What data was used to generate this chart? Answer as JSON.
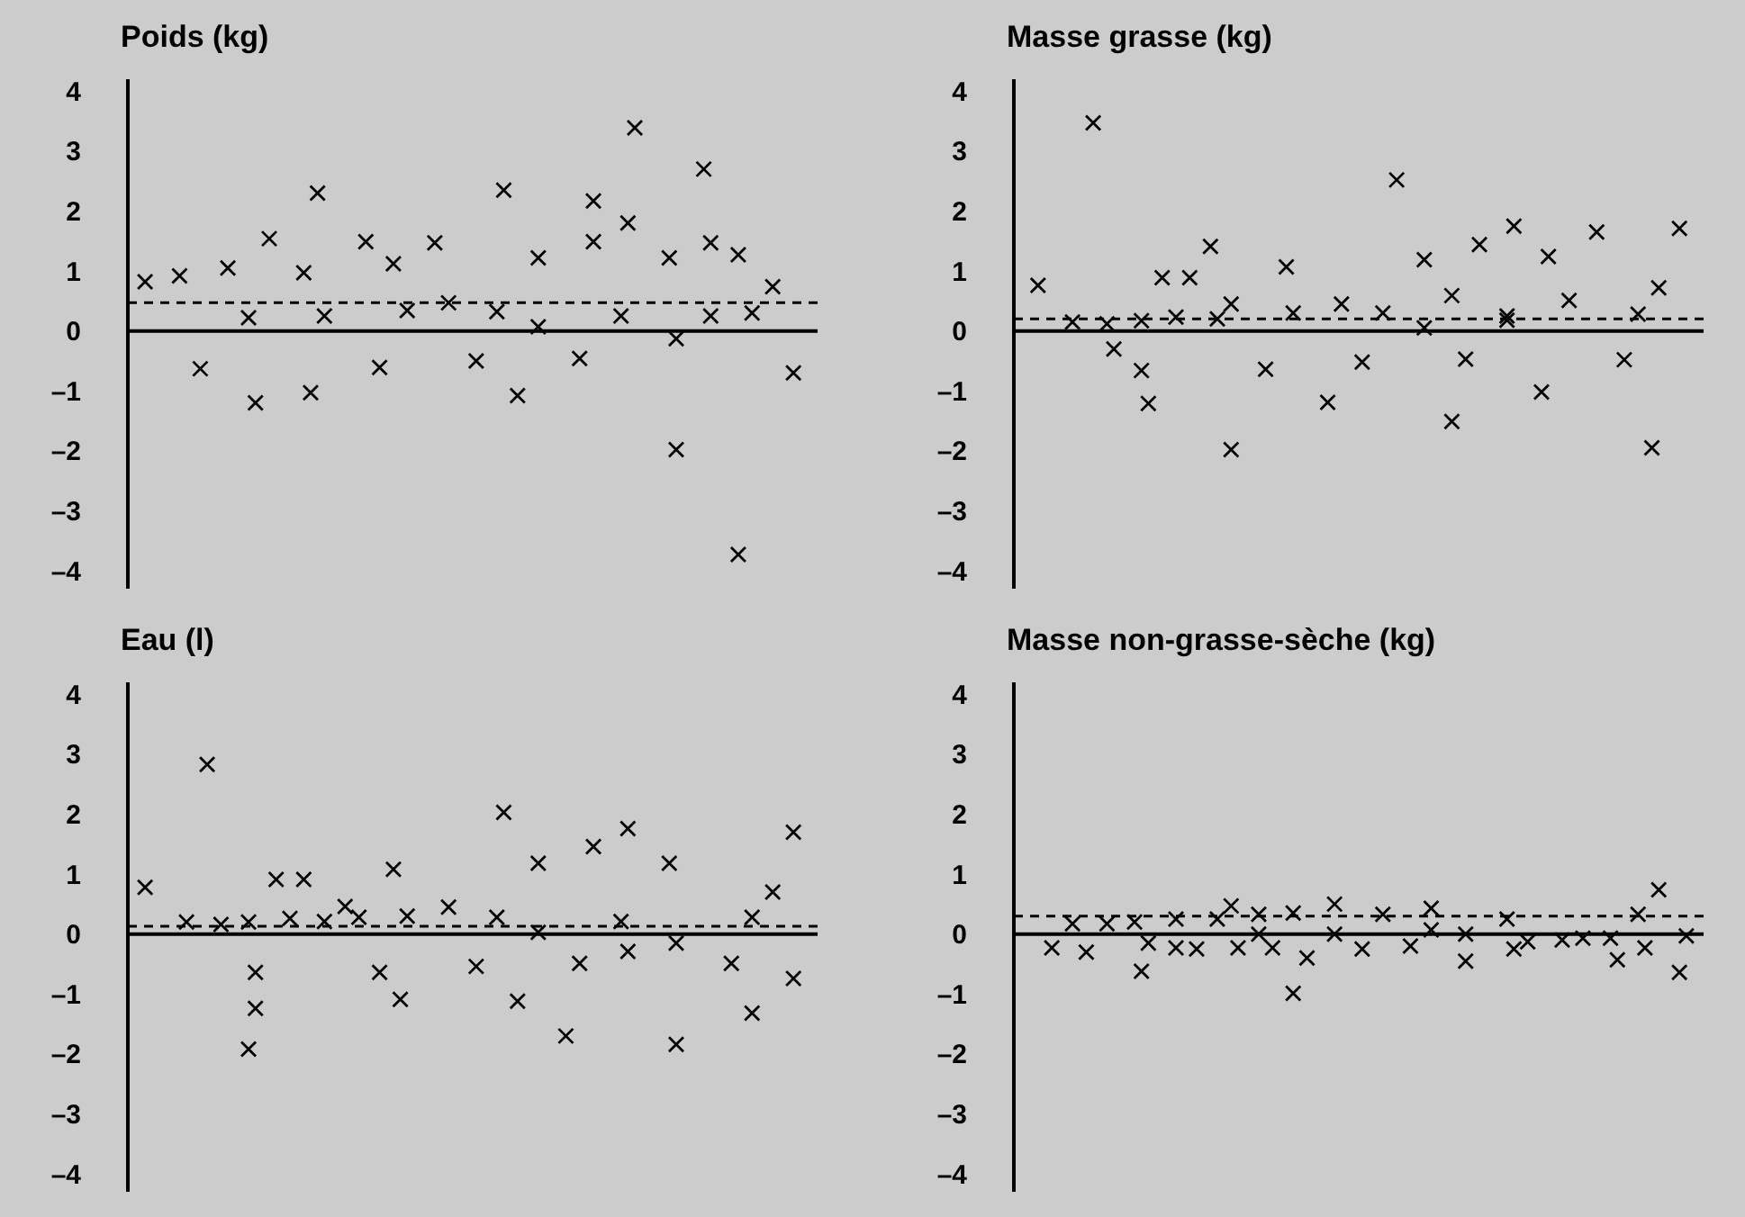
{
  "chart_data": [
    {
      "type": "scatter",
      "title": "Poids (kg)",
      "marker": "cross",
      "tick_labels": "y",
      "ylim": [
        -4.3,
        4.2
      ],
      "categories": [
        null,
        null,
        null,
        null,
        null,
        null,
        null,
        null,
        null,
        null,
        null,
        null,
        null,
        null,
        null,
        null,
        null,
        null,
        null,
        null,
        null,
        null,
        null,
        null,
        null,
        null,
        null,
        null,
        null,
        null,
        null,
        null,
        null,
        null,
        null,
        null,
        null,
        null,
        null,
        null,
        null,
        null,
        null,
        null,
        null,
        null,
        null,
        null,
        null,
        null,
        null,
        null,
        null,
        null,
        null,
        null,
        null,
        null,
        null,
        null,
        null,
        null,
        null,
        null,
        null,
        null,
        null,
        null,
        null,
        null,
        null,
        null,
        null,
        null,
        null,
        null,
        null,
        null,
        null,
        null,
        null,
        null,
        null,
        null,
        null,
        null,
        null,
        null,
        null,
        null,
        null,
        null,
        null,
        null,
        null,
        null,
        null,
        null,
        null,
        null
      ],
      "yticks": [
        4,
        3,
        2,
        1,
        0,
        {
          "value": -1,
          "label": "–1"
        },
        {
          "value": -2,
          "label": "–2"
        },
        {
          "value": -3,
          "label": "–3"
        },
        {
          "value": -4,
          "label": "–4"
        }
      ],
      "ref_lines": [
        {
          "axis": "y",
          "value": 0.47,
          "line_style": "dashed"
        }
      ],
      "series": [
        {
          "color": "#000000",
          "values": [
            null,
            null,
            0.82,
            null,
            null,
            null,
            null,
            0.92,
            null,
            null,
            -0.63,
            null,
            null,
            null,
            1.05,
            null,
            null,
            0.22,
            -1.2,
            null,
            1.54,
            null,
            null,
            null,
            null,
            0.97,
            -1.03,
            2.3,
            0.25,
            null,
            null,
            null,
            null,
            null,
            1.49,
            null,
            -0.61,
            null,
            1.12,
            null,
            0.34,
            null,
            null,
            null,
            1.47,
            null,
            0.47,
            null,
            null,
            null,
            -0.5,
            null,
            null,
            0.32,
            2.35,
            null,
            -1.08,
            null,
            null,
            1.22,
            null,
            null,
            null,
            null,
            null,
            -0.46,
            null,
            2.17,
            null,
            null,
            null,
            0.25,
            1.8,
            3.39,
            null,
            null,
            null,
            null,
            1.22,
            -0.13,
            null,
            null,
            null,
            2.7,
            1.47,
            null,
            null,
            null,
            1.27,
            null,
            0.3,
            null,
            null,
            0.74,
            null,
            null,
            -0.7,
            null,
            null,
            null
          ]
        },
        {
          "color": "#000000",
          "values": [
            null,
            null,
            null,
            null,
            null,
            null,
            null,
            null,
            null,
            null,
            null,
            null,
            null,
            null,
            null,
            null,
            null,
            null,
            null,
            null,
            null,
            null,
            null,
            null,
            null,
            null,
            null,
            null,
            null,
            null,
            null,
            null,
            null,
            null,
            null,
            null,
            null,
            null,
            null,
            null,
            null,
            null,
            null,
            null,
            null,
            null,
            null,
            null,
            null,
            null,
            null,
            null,
            null,
            null,
            null,
            null,
            null,
            null,
            null,
            0.07,
            null,
            null,
            null,
            null,
            null,
            null,
            null,
            1.49,
            null,
            null,
            null,
            null,
            null,
            null,
            null,
            null,
            null,
            null,
            null,
            -1.98,
            null,
            null,
            null,
            null,
            0.25,
            null,
            null,
            null,
            -3.73,
            null,
            null,
            null,
            null,
            null,
            null,
            null,
            null,
            null,
            null,
            null
          ]
        }
      ]
    },
    {
      "type": "scatter",
      "title": "Masse grasse (kg)",
      "marker": "cross",
      "tick_labels": "y",
      "ylim": [
        -4.3,
        4.2
      ],
      "categories": [
        null,
        null,
        null,
        null,
        null,
        null,
        null,
        null,
        null,
        null,
        null,
        null,
        null,
        null,
        null,
        null,
        null,
        null,
        null,
        null,
        null,
        null,
        null,
        null,
        null,
        null,
        null,
        null,
        null,
        null,
        null,
        null,
        null,
        null,
        null,
        null,
        null,
        null,
        null,
        null,
        null,
        null,
        null,
        null,
        null,
        null,
        null,
        null,
        null,
        null,
        null,
        null,
        null,
        null,
        null,
        null,
        null,
        null,
        null,
        null,
        null,
        null,
        null,
        null,
        null,
        null,
        null,
        null,
        null,
        null,
        null,
        null,
        null,
        null,
        null,
        null,
        null,
        null,
        null,
        null,
        null,
        null,
        null,
        null,
        null,
        null,
        null,
        null,
        null,
        null,
        null,
        null,
        null,
        null,
        null,
        null,
        null,
        null,
        null,
        null
      ],
      "yticks": [
        4,
        3,
        2,
        1,
        0,
        {
          "value": -1,
          "label": "–1"
        },
        {
          "value": -2,
          "label": "–2"
        },
        {
          "value": -3,
          "label": "–3"
        },
        {
          "value": -4,
          "label": "–4"
        }
      ],
      "ref_lines": [
        {
          "axis": "y",
          "value": 0.2,
          "line_style": "dashed"
        }
      ],
      "series": [
        {
          "color": "#000000",
          "values": [
            null,
            null,
            null,
            0.76,
            null,
            null,
            null,
            null,
            0.15,
            null,
            null,
            3.47,
            null,
            0.12,
            -0.3,
            null,
            null,
            null,
            0.17,
            -1.21,
            null,
            0.89,
            null,
            0.23,
            null,
            0.89,
            null,
            null,
            1.41,
            0.2,
            null,
            0.45,
            null,
            null,
            null,
            null,
            -0.64,
            null,
            null,
            1.07,
            0.3,
            null,
            null,
            null,
            null,
            -1.19,
            null,
            0.45,
            null,
            null,
            -0.52,
            null,
            null,
            0.3,
            null,
            2.52,
            null,
            null,
            null,
            1.19,
            null,
            null,
            null,
            0.59,
            null,
            -0.47,
            null,
            1.44,
            null,
            null,
            null,
            0.25,
            1.75,
            null,
            null,
            null,
            -1.02,
            1.24,
            null,
            null,
            0.51,
            null,
            null,
            null,
            1.65,
            null,
            null,
            null,
            -0.48,
            null,
            0.28,
            null,
            -1.95,
            0.72,
            null,
            null,
            1.71,
            null,
            null,
            null
          ]
        },
        {
          "color": "#000000",
          "values": [
            null,
            null,
            null,
            null,
            null,
            null,
            null,
            null,
            null,
            null,
            null,
            null,
            null,
            null,
            null,
            null,
            null,
            null,
            -0.66,
            null,
            null,
            null,
            null,
            null,
            null,
            null,
            null,
            null,
            null,
            null,
            null,
            -1.98,
            null,
            null,
            null,
            null,
            null,
            null,
            null,
            null,
            null,
            null,
            null,
            null,
            null,
            null,
            null,
            null,
            null,
            null,
            null,
            null,
            null,
            null,
            null,
            null,
            null,
            null,
            null,
            0.05,
            null,
            null,
            null,
            -1.51,
            null,
            null,
            null,
            null,
            null,
            null,
            null,
            0.18,
            null,
            null,
            null,
            null,
            null,
            null,
            null,
            null,
            null,
            null,
            null,
            null,
            null,
            null,
            null,
            null,
            null,
            null,
            null,
            null,
            null,
            null,
            null,
            null,
            null,
            null,
            null,
            null
          ]
        }
      ]
    },
    {
      "type": "scatter",
      "title": "Eau (l)",
      "marker": "cross",
      "tick_labels": "y",
      "ylim": [
        -4.3,
        4.2
      ],
      "categories": [
        null,
        null,
        null,
        null,
        null,
        null,
        null,
        null,
        null,
        null,
        null,
        null,
        null,
        null,
        null,
        null,
        null,
        null,
        null,
        null,
        null,
        null,
        null,
        null,
        null,
        null,
        null,
        null,
        null,
        null,
        null,
        null,
        null,
        null,
        null,
        null,
        null,
        null,
        null,
        null,
        null,
        null,
        null,
        null,
        null,
        null,
        null,
        null,
        null,
        null,
        null,
        null,
        null,
        null,
        null,
        null,
        null,
        null,
        null,
        null,
        null,
        null,
        null,
        null,
        null,
        null,
        null,
        null,
        null,
        null,
        null,
        null,
        null,
        null,
        null,
        null,
        null,
        null,
        null,
        null,
        null,
        null,
        null,
        null,
        null,
        null,
        null,
        null,
        null,
        null,
        null,
        null,
        null,
        null,
        null,
        null,
        null,
        null,
        null,
        null
      ],
      "yticks": [
        4,
        3,
        2,
        1,
        0,
        {
          "value": -1,
          "label": "–1"
        },
        {
          "value": -2,
          "label": "–2"
        },
        {
          "value": -3,
          "label": "–3"
        },
        {
          "value": -4,
          "label": "–4"
        }
      ],
      "ref_lines": [
        {
          "axis": "y",
          "value": 0.13,
          "line_style": "dashed"
        }
      ],
      "series": [
        {
          "color": "#000000",
          "values": [
            null,
            null,
            0.78,
            null,
            null,
            null,
            null,
            null,
            0.2,
            null,
            null,
            2.83,
            null,
            0.16,
            null,
            null,
            null,
            0.2,
            -0.64,
            null,
            null,
            0.91,
            null,
            0.26,
            null,
            0.91,
            null,
            null,
            0.21,
            null,
            null,
            0.46,
            null,
            0.28,
            null,
            null,
            -0.64,
            null,
            1.08,
            -1.09,
            0.3,
            null,
            null,
            null,
            null,
            null,
            0.45,
            null,
            null,
            null,
            -0.54,
            null,
            null,
            0.28,
            2.03,
            null,
            -1.12,
            null,
            null,
            1.18,
            null,
            null,
            null,
            -1.7,
            null,
            -0.49,
            null,
            1.46,
            null,
            null,
            null,
            0.21,
            1.76,
            null,
            null,
            null,
            null,
            null,
            1.18,
            -0.15,
            null,
            null,
            null,
            null,
            null,
            null,
            null,
            -0.49,
            null,
            null,
            0.28,
            null,
            null,
            0.7,
            null,
            null,
            1.7,
            null,
            null,
            null
          ]
        },
        {
          "color": "#000000",
          "values": [
            null,
            null,
            null,
            null,
            null,
            null,
            null,
            null,
            null,
            null,
            null,
            null,
            null,
            null,
            null,
            null,
            null,
            -1.92,
            -1.24,
            null,
            null,
            null,
            null,
            null,
            null,
            null,
            null,
            null,
            null,
            null,
            null,
            null,
            null,
            null,
            null,
            null,
            null,
            null,
            null,
            null,
            null,
            null,
            null,
            null,
            null,
            null,
            null,
            null,
            null,
            null,
            null,
            null,
            null,
            null,
            null,
            null,
            null,
            null,
            null,
            0.03,
            null,
            null,
            null,
            null,
            null,
            null,
            null,
            null,
            null,
            null,
            null,
            null,
            -0.29,
            null,
            null,
            null,
            null,
            null,
            null,
            -1.84,
            null,
            null,
            null,
            null,
            null,
            null,
            null,
            null,
            null,
            null,
            -1.32,
            null,
            null,
            null,
            null,
            null,
            -0.74,
            null,
            null,
            null
          ]
        }
      ]
    },
    {
      "type": "scatter",
      "title": "Masse non-grasse-sèche (kg)",
      "marker": "cross",
      "tick_labels": "y",
      "ylim": [
        -4.3,
        4.2
      ],
      "categories": [
        null,
        null,
        null,
        null,
        null,
        null,
        null,
        null,
        null,
        null,
        null,
        null,
        null,
        null,
        null,
        null,
        null,
        null,
        null,
        null,
        null,
        null,
        null,
        null,
        null,
        null,
        null,
        null,
        null,
        null,
        null,
        null,
        null,
        null,
        null,
        null,
        null,
        null,
        null,
        null,
        null,
        null,
        null,
        null,
        null,
        null,
        null,
        null,
        null,
        null,
        null,
        null,
        null,
        null,
        null,
        null,
        null,
        null,
        null,
        null,
        null,
        null,
        null,
        null,
        null,
        null,
        null,
        null,
        null,
        null,
        null,
        null,
        null,
        null,
        null,
        null,
        null,
        null,
        null,
        null,
        null,
        null,
        null,
        null,
        null,
        null,
        null,
        null,
        null,
        null,
        null,
        null,
        null,
        null,
        null,
        null,
        null,
        null,
        null,
        null
      ],
      "yticks": [
        4,
        3,
        2,
        1,
        0,
        {
          "value": -1,
          "label": "–1"
        },
        {
          "value": -2,
          "label": "–2"
        },
        {
          "value": -3,
          "label": "–3"
        },
        {
          "value": -4,
          "label": "–4"
        }
      ],
      "ref_lines": [
        {
          "axis": "y",
          "value": 0.3,
          "line_style": "dashed"
        }
      ],
      "series": [
        {
          "color": "#000000",
          "values": [
            null,
            null,
            null,
            null,
            null,
            -0.23,
            null,
            null,
            0.17,
            null,
            -0.3,
            null,
            null,
            0.17,
            null,
            null,
            null,
            0.2,
            -0.62,
            -0.15,
            null,
            null,
            null,
            0.25,
            null,
            null,
            -0.25,
            null,
            null,
            0.25,
            null,
            0.47,
            -0.23,
            null,
            null,
            0.33,
            null,
            -0.23,
            null,
            null,
            -0.99,
            null,
            -0.4,
            null,
            null,
            null,
            0.5,
            null,
            null,
            null,
            -0.25,
            null,
            null,
            0.33,
            null,
            null,
            null,
            -0.2,
            null,
            null,
            0.43,
            null,
            null,
            null,
            null,
            0,
            null,
            null,
            null,
            null,
            null,
            0.25,
            -0.25,
            null,
            -0.13,
            null,
            null,
            null,
            null,
            -0.1,
            null,
            null,
            -0.07,
            null,
            null,
            null,
            -0.07,
            -0.43,
            null,
            null,
            0.33,
            -0.23,
            null,
            0.74,
            null,
            null,
            -0.64,
            -0.03,
            null,
            null
          ]
        },
        {
          "color": "#000000",
          "values": [
            null,
            null,
            null,
            null,
            null,
            null,
            null,
            null,
            null,
            null,
            null,
            null,
            null,
            null,
            null,
            null,
            null,
            null,
            null,
            null,
            null,
            null,
            null,
            -0.23,
            null,
            null,
            null,
            null,
            null,
            null,
            null,
            null,
            null,
            null,
            null,
            0,
            null,
            null,
            null,
            null,
            0.35,
            null,
            null,
            null,
            null,
            null,
            0,
            null,
            null,
            null,
            null,
            null,
            null,
            null,
            null,
            null,
            null,
            null,
            null,
            null,
            0.07,
            null,
            null,
            null,
            null,
            -0.45,
            null,
            null,
            null,
            null,
            null,
            null,
            null,
            null,
            null,
            null,
            null,
            null,
            null,
            null,
            null,
            null,
            null,
            null,
            null,
            null,
            null,
            null,
            null,
            null,
            null,
            null,
            null,
            null,
            null,
            null,
            null,
            null,
            null,
            null
          ]
        }
      ]
    }
  ]
}
